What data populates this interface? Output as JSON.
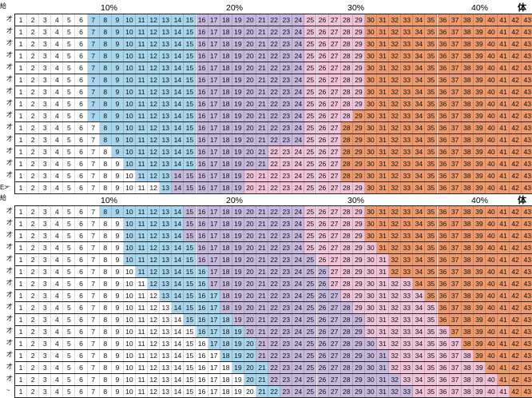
{
  "section1": {
    "corner_label": "給",
    "right_label": "体",
    "pct_labels": [
      "10%",
      "20%",
      "30%",
      "40%"
    ],
    "row_marks": [
      "才",
      "才",
      "才",
      "才",
      "才",
      "才",
      "才",
      "才",
      "才",
      "才",
      "才",
      "才",
      "才",
      "才",
      "~"
    ],
    "values": [
      1,
      2,
      3,
      4,
      5,
      6,
      7,
      8,
      9,
      10,
      11,
      12,
      13,
      14,
      15,
      16,
      17,
      18,
      19,
      20,
      21,
      22,
      23,
      24,
      25,
      26,
      27,
      28,
      29,
      30,
      31,
      32,
      33,
      34,
      35,
      36,
      37,
      38,
      39,
      40,
      41,
      42,
      43
    ],
    "rows": [
      [
        6,
        15,
        24,
        29
      ],
      [
        6,
        15,
        24,
        29
      ],
      [
        6,
        15,
        24,
        29
      ],
      [
        6,
        15,
        24,
        29
      ],
      [
        6,
        15,
        24,
        29
      ],
      [
        6,
        15,
        24,
        29
      ],
      [
        6,
        15,
        24,
        29
      ],
      [
        6,
        15,
        24,
        29
      ],
      [
        6,
        15,
        24,
        28
      ],
      [
        7,
        15,
        24,
        27
      ],
      [
        7,
        15,
        24,
        27
      ],
      [
        8,
        15,
        21,
        27
      ],
      [
        9,
        15,
        21,
        27
      ],
      [
        10,
        13,
        19,
        27
      ],
      [
        12,
        13,
        19,
        29
      ]
    ]
  },
  "section2": {
    "corner_label": "給",
    "prefix_label": "E>",
    "right_label": "体",
    "pct_labels": [
      "10%",
      "20%",
      "30%",
      "40%"
    ],
    "row_marks": [
      "才",
      "才",
      "才",
      "才",
      "才",
      "才",
      "才",
      "才",
      "才",
      "才",
      "才",
      "才",
      "才",
      "才",
      "才",
      "~"
    ],
    "values": [
      1,
      2,
      3,
      4,
      5,
      6,
      7,
      8,
      9,
      10,
      11,
      12,
      13,
      14,
      15,
      16,
      17,
      18,
      19,
      20,
      21,
      22,
      23,
      24,
      25,
      26,
      27,
      28,
      29,
      30,
      31,
      32,
      33,
      34,
      35,
      36,
      37,
      38,
      39,
      40,
      41,
      42,
      43
    ],
    "rows": [
      [
        7,
        14,
        24,
        29
      ],
      [
        9,
        14,
        24,
        29
      ],
      [
        9,
        14,
        24,
        29
      ],
      [
        9,
        15,
        24,
        30
      ],
      [
        9,
        15,
        25,
        31
      ],
      [
        10,
        16,
        26,
        31
      ],
      [
        11,
        16,
        26,
        33
      ],
      [
        12,
        17,
        27,
        34
      ],
      [
        13,
        17,
        28,
        35
      ],
      [
        14,
        18,
        29,
        35
      ],
      [
        15,
        19,
        29,
        36
      ],
      [
        16,
        20,
        30,
        37
      ],
      [
        17,
        20,
        31,
        38
      ],
      [
        18,
        21,
        31,
        39
      ],
      [
        19,
        21,
        32,
        40
      ],
      [
        20,
        22,
        33,
        41
      ]
    ]
  },
  "colors": {
    "white": "#ffffff",
    "blue": "#a8d6ee",
    "lavender": "#c9b8de",
    "pink": "#f1c4da",
    "orange": "#ee9a6a"
  }
}
